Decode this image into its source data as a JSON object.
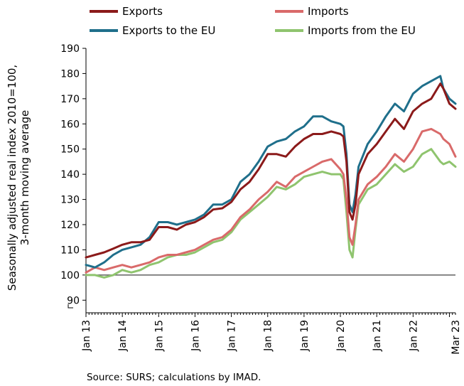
{
  "chart_data": {
    "type": "line",
    "ylabel_line1": "Seasonally adjusted real index 2010=100,",
    "ylabel_line2": "3-month moving average",
    "source": "Source: SURS; calculations by IMAD.",
    "ylim": [
      85,
      190
    ],
    "y_ticks": [
      90,
      100,
      110,
      120,
      130,
      140,
      150,
      160,
      170,
      180,
      190
    ],
    "x_range": [
      "2013-01",
      "2023-03"
    ],
    "x_ticks": [
      {
        "label": "Jan 13",
        "date": "2013-01"
      },
      {
        "label": "Jan 14",
        "date": "2014-01"
      },
      {
        "label": "Jan 15",
        "date": "2015-01"
      },
      {
        "label": "Jan 16",
        "date": "2016-01"
      },
      {
        "label": "Jan 17",
        "date": "2017-01"
      },
      {
        "label": "Jan 18",
        "date": "2018-01"
      },
      {
        "label": "Jan 19",
        "date": "2019-01"
      },
      {
        "label": "Jan 20",
        "date": "2020-01"
      },
      {
        "label": "Jan 21",
        "date": "2021-01"
      },
      {
        "label": "Jan 22",
        "date": "2022-01"
      },
      {
        "label": "Mar 23",
        "date": "2023-03"
      }
    ],
    "reference_line": 100,
    "grid": false,
    "legend_position": "top",
    "series": [
      {
        "name": "Exports",
        "color": "#8b1a1a",
        "points": [
          [
            "2013-01",
            107
          ],
          [
            "2013-04",
            108
          ],
          [
            "2013-07",
            109
          ],
          [
            "2013-10",
            110.5
          ],
          [
            "2014-01",
            112
          ],
          [
            "2014-04",
            113
          ],
          [
            "2014-07",
            113
          ],
          [
            "2014-10",
            114
          ],
          [
            "2015-01",
            119
          ],
          [
            "2015-04",
            119
          ],
          [
            "2015-07",
            118
          ],
          [
            "2015-10",
            120
          ],
          [
            "2016-01",
            121
          ],
          [
            "2016-04",
            123
          ],
          [
            "2016-07",
            126
          ],
          [
            "2016-10",
            126.5
          ],
          [
            "2017-01",
            129
          ],
          [
            "2017-04",
            134
          ],
          [
            "2017-07",
            137
          ],
          [
            "2017-10",
            142
          ],
          [
            "2018-01",
            148
          ],
          [
            "2018-04",
            148
          ],
          [
            "2018-07",
            147
          ],
          [
            "2018-10",
            151
          ],
          [
            "2019-01",
            154
          ],
          [
            "2019-04",
            156
          ],
          [
            "2019-07",
            156
          ],
          [
            "2019-10",
            157
          ],
          [
            "2020-01",
            156
          ],
          [
            "2020-02",
            155
          ],
          [
            "2020-03",
            145
          ],
          [
            "2020-04",
            125
          ],
          [
            "2020-05",
            122
          ],
          [
            "2020-06",
            128
          ],
          [
            "2020-07",
            140
          ],
          [
            "2020-10",
            148
          ],
          [
            "2021-01",
            152
          ],
          [
            "2021-04",
            157
          ],
          [
            "2021-07",
            162
          ],
          [
            "2021-10",
            158
          ],
          [
            "2022-01",
            165
          ],
          [
            "2022-04",
            168
          ],
          [
            "2022-07",
            170
          ],
          [
            "2022-10",
            176
          ],
          [
            "2022-11",
            174
          ],
          [
            "2023-01",
            168
          ],
          [
            "2023-03",
            166
          ]
        ]
      },
      {
        "name": "Imports",
        "color": "#d96a6a",
        "points": [
          [
            "2013-01",
            101
          ],
          [
            "2013-04",
            103
          ],
          [
            "2013-07",
            102
          ],
          [
            "2013-10",
            103
          ],
          [
            "2014-01",
            104
          ],
          [
            "2014-04",
            103
          ],
          [
            "2014-07",
            104
          ],
          [
            "2014-10",
            105
          ],
          [
            "2015-01",
            107
          ],
          [
            "2015-04",
            108
          ],
          [
            "2015-07",
            108
          ],
          [
            "2015-10",
            109
          ],
          [
            "2016-01",
            110
          ],
          [
            "2016-04",
            112
          ],
          [
            "2016-07",
            114
          ],
          [
            "2016-10",
            115
          ],
          [
            "2017-01",
            118
          ],
          [
            "2017-04",
            123
          ],
          [
            "2017-07",
            126
          ],
          [
            "2017-10",
            130
          ],
          [
            "2018-01",
            133
          ],
          [
            "2018-04",
            137
          ],
          [
            "2018-07",
            135
          ],
          [
            "2018-10",
            139
          ],
          [
            "2019-01",
            141
          ],
          [
            "2019-04",
            143
          ],
          [
            "2019-07",
            145
          ],
          [
            "2019-10",
            146
          ],
          [
            "2020-01",
            142
          ],
          [
            "2020-02",
            140
          ],
          [
            "2020-03",
            130
          ],
          [
            "2020-04",
            115
          ],
          [
            "2020-05",
            112
          ],
          [
            "2020-06",
            120
          ],
          [
            "2020-07",
            130
          ],
          [
            "2020-10",
            136
          ],
          [
            "2021-01",
            139
          ],
          [
            "2021-04",
            143
          ],
          [
            "2021-07",
            148
          ],
          [
            "2021-10",
            145
          ],
          [
            "2022-01",
            150
          ],
          [
            "2022-04",
            157
          ],
          [
            "2022-07",
            158
          ],
          [
            "2022-10",
            156
          ],
          [
            "2022-11",
            154
          ],
          [
            "2023-01",
            152
          ],
          [
            "2023-03",
            147
          ]
        ]
      },
      {
        "name": "Exports to the EU",
        "color": "#1f6f8b",
        "points": [
          [
            "2013-01",
            104
          ],
          [
            "2013-04",
            103
          ],
          [
            "2013-07",
            105
          ],
          [
            "2013-10",
            108
          ],
          [
            "2014-01",
            110
          ],
          [
            "2014-04",
            111
          ],
          [
            "2014-07",
            112
          ],
          [
            "2014-10",
            115
          ],
          [
            "2015-01",
            121
          ],
          [
            "2015-04",
            121
          ],
          [
            "2015-07",
            120
          ],
          [
            "2015-10",
            121
          ],
          [
            "2016-01",
            122
          ],
          [
            "2016-04",
            124
          ],
          [
            "2016-07",
            128
          ],
          [
            "2016-10",
            128
          ],
          [
            "2017-01",
            130
          ],
          [
            "2017-04",
            137
          ],
          [
            "2017-07",
            140
          ],
          [
            "2017-10",
            145
          ],
          [
            "2018-01",
            151
          ],
          [
            "2018-04",
            153
          ],
          [
            "2018-07",
            154
          ],
          [
            "2018-10",
            157
          ],
          [
            "2019-01",
            159
          ],
          [
            "2019-04",
            163
          ],
          [
            "2019-07",
            163
          ],
          [
            "2019-10",
            161
          ],
          [
            "2020-01",
            160
          ],
          [
            "2020-02",
            159
          ],
          [
            "2020-03",
            148
          ],
          [
            "2020-04",
            128
          ],
          [
            "2020-05",
            125
          ],
          [
            "2020-06",
            132
          ],
          [
            "2020-07",
            143
          ],
          [
            "2020-10",
            152
          ],
          [
            "2021-01",
            157
          ],
          [
            "2021-04",
            163
          ],
          [
            "2021-07",
            168
          ],
          [
            "2021-10",
            165
          ],
          [
            "2022-01",
            172
          ],
          [
            "2022-04",
            175
          ],
          [
            "2022-07",
            177
          ],
          [
            "2022-10",
            179
          ],
          [
            "2022-11",
            174
          ],
          [
            "2023-01",
            170
          ],
          [
            "2023-03",
            168
          ]
        ]
      },
      {
        "name": "Imports from the EU",
        "color": "#8fc46e",
        "points": [
          [
            "2013-01",
            100
          ],
          [
            "2013-04",
            100
          ],
          [
            "2013-07",
            99
          ],
          [
            "2013-10",
            100
          ],
          [
            "2014-01",
            102
          ],
          [
            "2014-04",
            101
          ],
          [
            "2014-07",
            102
          ],
          [
            "2014-10",
            104
          ],
          [
            "2015-01",
            105
          ],
          [
            "2015-04",
            107
          ],
          [
            "2015-07",
            108
          ],
          [
            "2015-10",
            108
          ],
          [
            "2016-01",
            109
          ],
          [
            "2016-04",
            111
          ],
          [
            "2016-07",
            113
          ],
          [
            "2016-10",
            114
          ],
          [
            "2017-01",
            117
          ],
          [
            "2017-04",
            122
          ],
          [
            "2017-07",
            125
          ],
          [
            "2017-10",
            128
          ],
          [
            "2018-01",
            131
          ],
          [
            "2018-04",
            135
          ],
          [
            "2018-07",
            134
          ],
          [
            "2018-10",
            136
          ],
          [
            "2019-01",
            139
          ],
          [
            "2019-04",
            140
          ],
          [
            "2019-07",
            141
          ],
          [
            "2019-10",
            140
          ],
          [
            "2020-01",
            140
          ],
          [
            "2020-02",
            138
          ],
          [
            "2020-03",
            125
          ],
          [
            "2020-04",
            110
          ],
          [
            "2020-05",
            107
          ],
          [
            "2020-06",
            118
          ],
          [
            "2020-07",
            128
          ],
          [
            "2020-10",
            134
          ],
          [
            "2021-01",
            136
          ],
          [
            "2021-04",
            140
          ],
          [
            "2021-07",
            144
          ],
          [
            "2021-10",
            141
          ],
          [
            "2022-01",
            143
          ],
          [
            "2022-04",
            148
          ],
          [
            "2022-07",
            150
          ],
          [
            "2022-10",
            145
          ],
          [
            "2022-11",
            144
          ],
          [
            "2023-01",
            145
          ],
          [
            "2023-03",
            143
          ]
        ]
      }
    ]
  }
}
